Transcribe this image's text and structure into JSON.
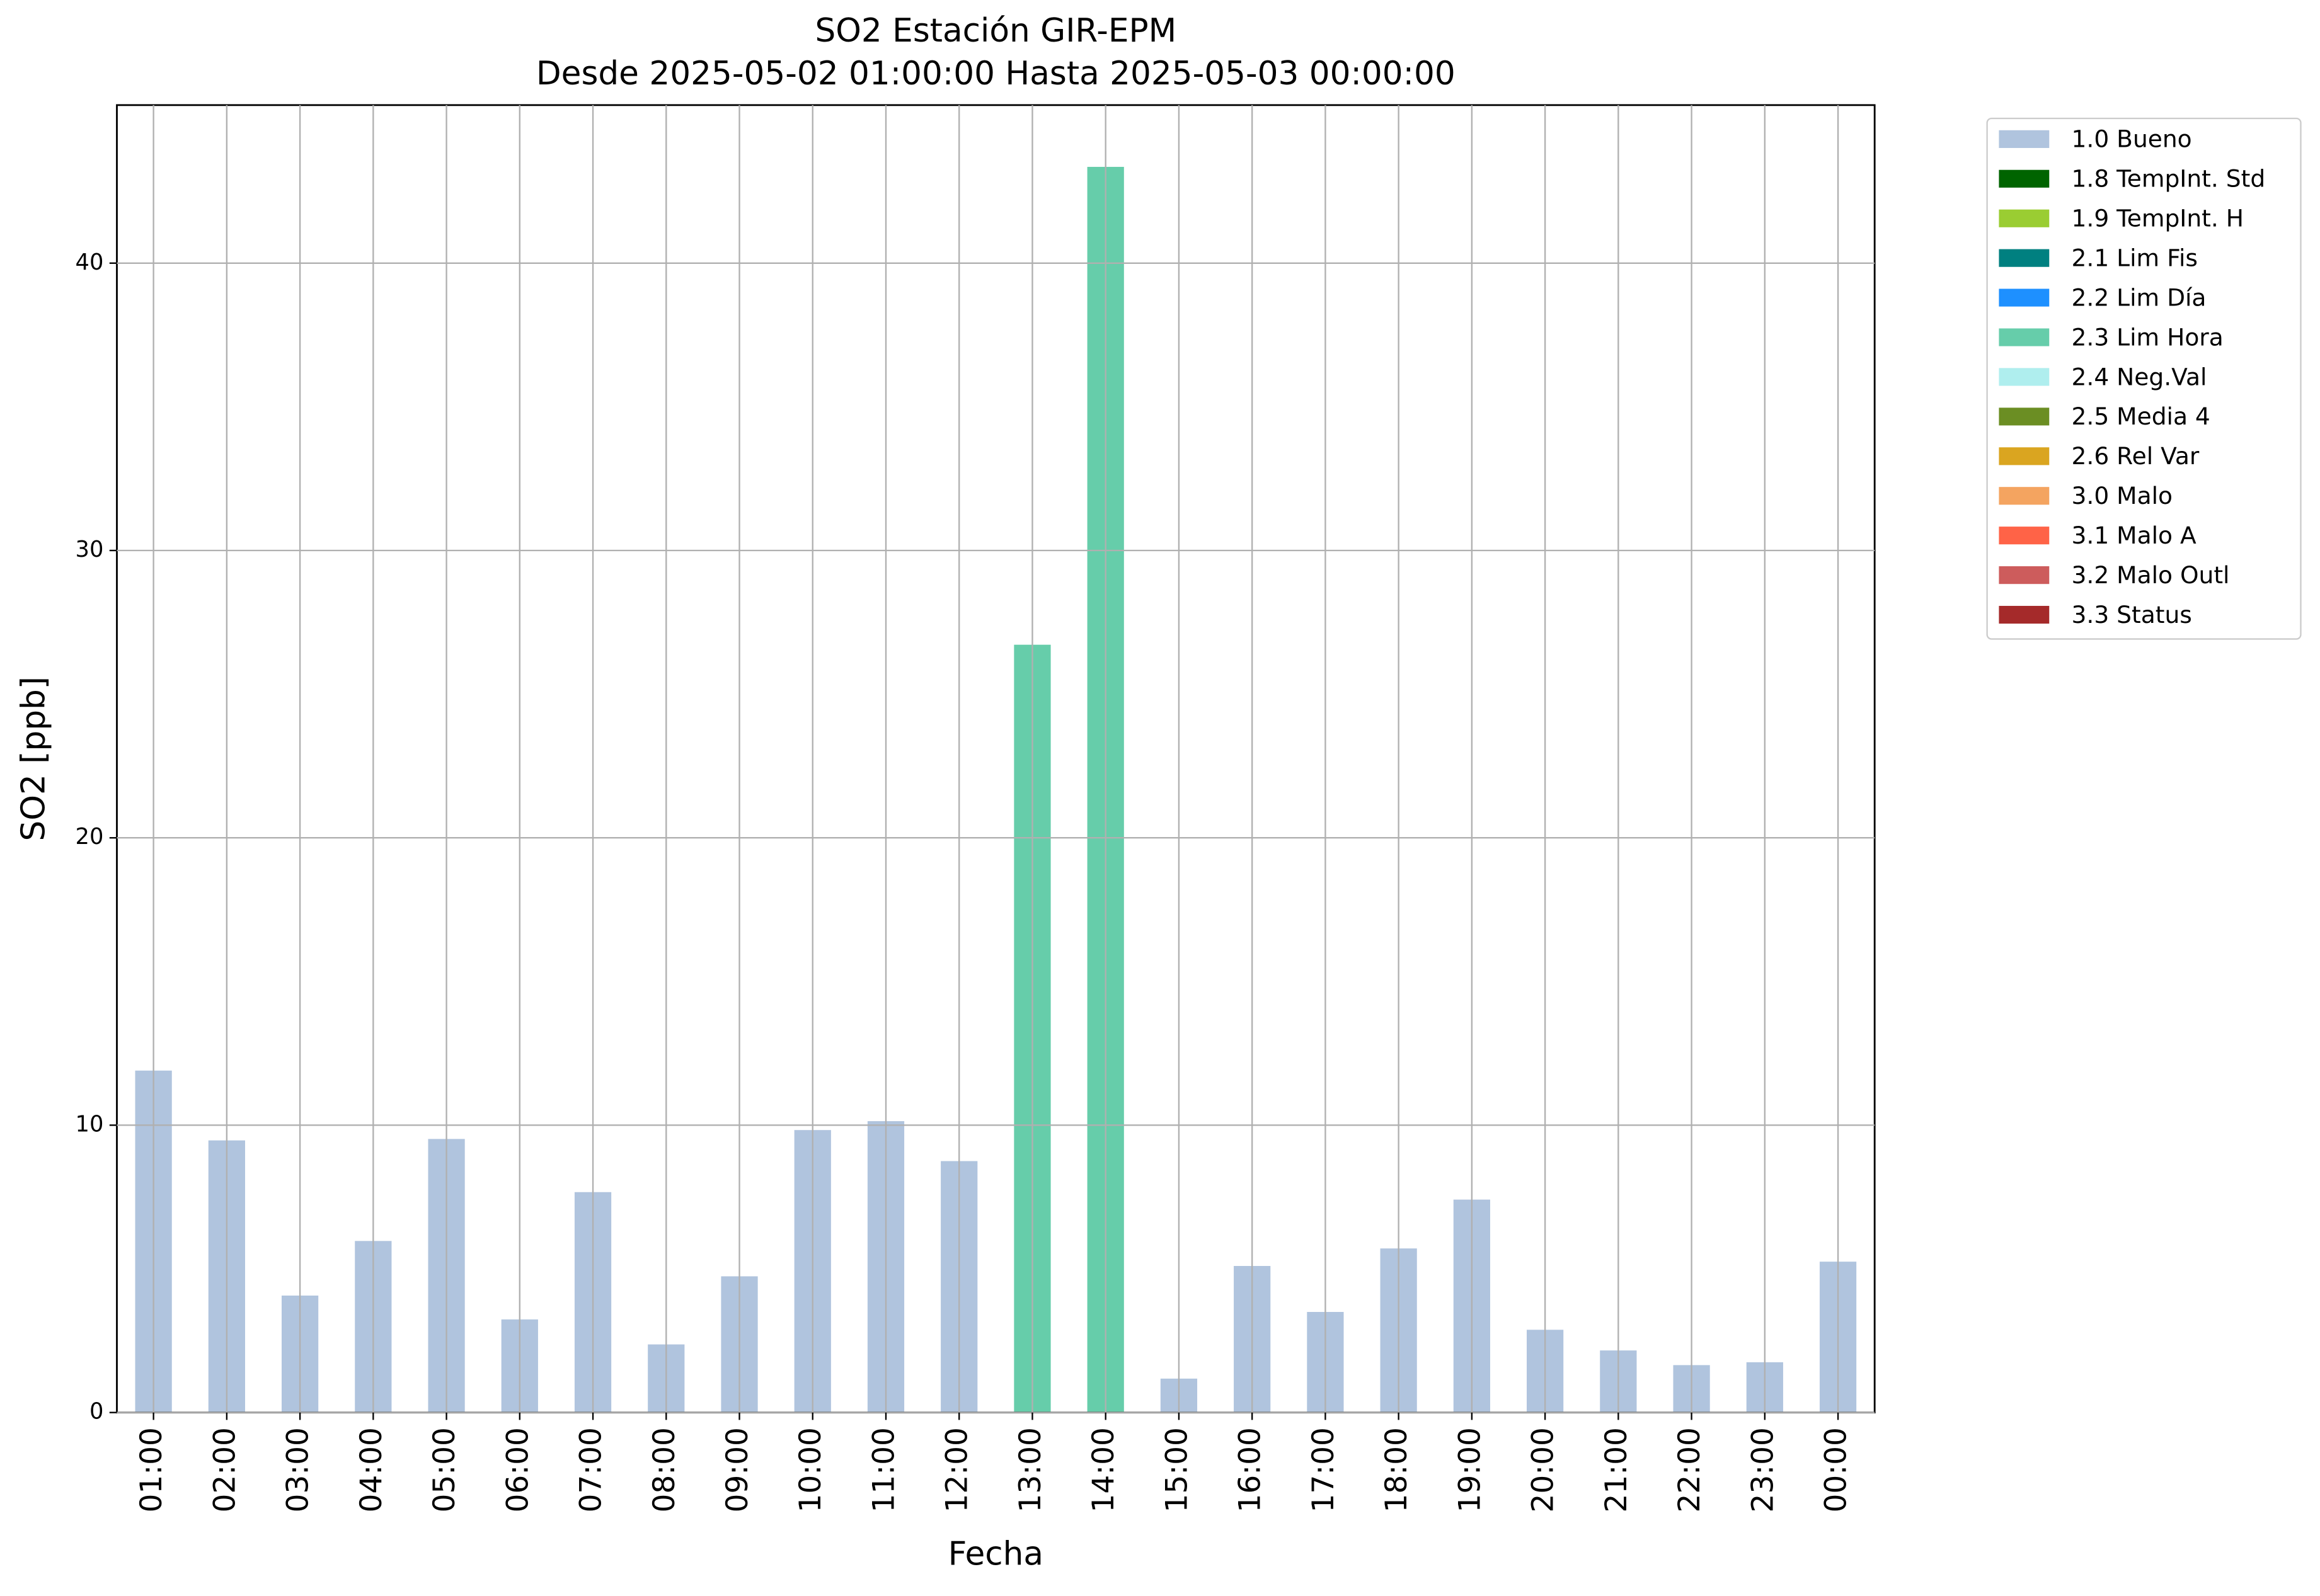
{
  "chart_data": {
    "type": "stacked-bar",
    "title": "SO2 Estación GIR-EPM",
    "subtitle": "Desde 2025-05-02 01:00:00 Hasta 2025-05-03 00:00:00",
    "x_label": "Fecha",
    "y_label": "SO2 [ppb]",
    "categories": [
      "01:00",
      "02:00",
      "03:00",
      "04:00",
      "05:00",
      "06:00",
      "07:00",
      "08:00",
      "09:00",
      "10:00",
      "11:00",
      "12:00",
      "13:00",
      "14:00",
      "15:00",
      "16:00",
      "17:00",
      "18:00",
      "19:00",
      "20:00",
      "21:00",
      "22:00",
      "23:00",
      "00:00"
    ],
    "series": [
      {
        "name": "1.0 Bueno",
        "color": "#b0c4de",
        "values": [
          11.9,
          9.47,
          4.07,
          5.97,
          9.52,
          3.24,
          7.67,
          2.37,
          4.74,
          9.83,
          10.14,
          8.75,
          null,
          null,
          1.18,
          5.1,
          3.5,
          5.71,
          7.41,
          2.88,
          2.16,
          1.65,
          1.75,
          5.25
        ]
      },
      {
        "name": "1.8 TempInt. Std",
        "color": "#006400",
        "values": [
          null,
          null,
          null,
          null,
          null,
          null,
          null,
          null,
          null,
          null,
          null,
          null,
          null,
          null,
          null,
          null,
          null,
          null,
          null,
          null,
          null,
          null,
          null,
          null
        ]
      },
      {
        "name": "1.9 TempInt. H",
        "color": "#9acd32",
        "values": [
          null,
          null,
          null,
          null,
          null,
          null,
          null,
          null,
          null,
          null,
          null,
          null,
          null,
          null,
          null,
          null,
          null,
          null,
          null,
          null,
          null,
          null,
          null,
          null
        ]
      },
      {
        "name": "2.1 Lim Fis",
        "color": "#008080",
        "values": [
          null,
          null,
          null,
          null,
          null,
          null,
          null,
          null,
          null,
          null,
          null,
          null,
          null,
          null,
          null,
          null,
          null,
          null,
          null,
          null,
          null,
          null,
          null,
          null
        ]
      },
      {
        "name": "2.2 Lim Día",
        "color": "#1e90ff",
        "values": [
          null,
          null,
          null,
          null,
          null,
          null,
          null,
          null,
          null,
          null,
          null,
          null,
          null,
          null,
          null,
          null,
          null,
          null,
          null,
          null,
          null,
          null,
          null,
          null
        ]
      },
      {
        "name": "2.3 Lim Hora",
        "color": "#66cdaa",
        "values": [
          null,
          null,
          null,
          null,
          null,
          null,
          null,
          null,
          null,
          null,
          null,
          null,
          26.72,
          43.35,
          null,
          null,
          null,
          null,
          null,
          null,
          null,
          null,
          null,
          null
        ]
      },
      {
        "name": "2.4 Neg.Val",
        "color": "#afeeee",
        "values": [
          null,
          null,
          null,
          null,
          null,
          null,
          null,
          null,
          null,
          null,
          null,
          null,
          null,
          null,
          null,
          null,
          null,
          null,
          null,
          null,
          null,
          null,
          null,
          null
        ]
      },
      {
        "name": "2.5 Media 4",
        "color": "#6b8e23",
        "values": [
          null,
          null,
          null,
          null,
          null,
          null,
          null,
          null,
          null,
          null,
          null,
          null,
          null,
          null,
          null,
          null,
          null,
          null,
          null,
          null,
          null,
          null,
          null,
          null
        ]
      },
      {
        "name": "2.6 Rel Var",
        "color": "#daa520",
        "values": [
          null,
          null,
          null,
          null,
          null,
          null,
          null,
          null,
          null,
          null,
          null,
          null,
          null,
          null,
          null,
          null,
          null,
          null,
          null,
          null,
          null,
          null,
          null,
          null
        ]
      },
      {
        "name": "3.0 Malo",
        "color": "#f4a460",
        "values": [
          null,
          null,
          null,
          null,
          null,
          null,
          null,
          null,
          null,
          null,
          null,
          null,
          null,
          null,
          null,
          null,
          null,
          null,
          null,
          null,
          null,
          null,
          null,
          null
        ]
      },
      {
        "name": "3.1 Malo A",
        "color": "#ff6347",
        "values": [
          null,
          null,
          null,
          null,
          null,
          null,
          null,
          null,
          null,
          null,
          null,
          null,
          null,
          null,
          null,
          null,
          null,
          null,
          null,
          null,
          null,
          null,
          null,
          null
        ]
      },
      {
        "name": "3.2 Malo Outl",
        "color": "#cd5c5c",
        "values": [
          null,
          null,
          null,
          null,
          null,
          null,
          null,
          null,
          null,
          null,
          null,
          null,
          null,
          null,
          null,
          null,
          null,
          null,
          null,
          null,
          null,
          null,
          null,
          null
        ]
      },
      {
        "name": "3.3 Status",
        "color": "#a52a2a",
        "values": [
          null,
          null,
          null,
          null,
          null,
          null,
          null,
          null,
          null,
          null,
          null,
          null,
          null,
          null,
          null,
          null,
          null,
          null,
          null,
          null,
          null,
          null,
          null,
          null
        ]
      }
    ],
    "ylim": [
      0,
      45.5
    ],
    "yticks": [
      0,
      10,
      20,
      30,
      40
    ],
    "grid": true,
    "legend": "outside-right"
  }
}
